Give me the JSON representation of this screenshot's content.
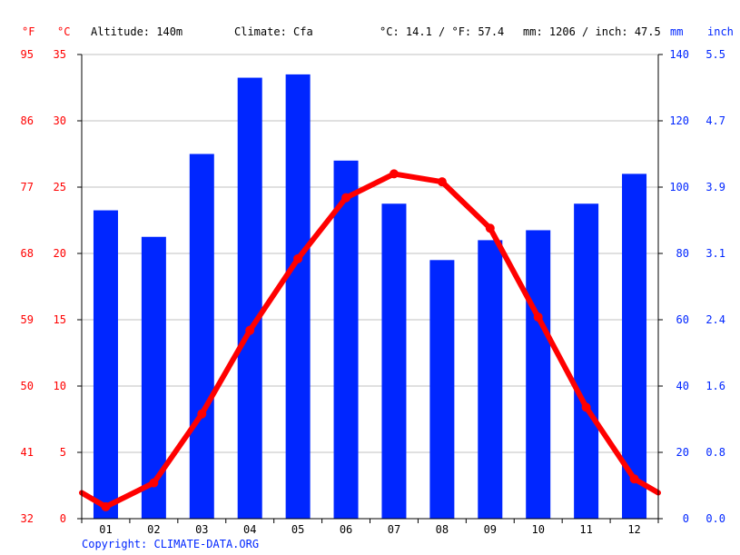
{
  "header": {
    "altitude": "Altitude: 140m",
    "climate": "Climate: Cfa",
    "temp_avg": "°C: 14.1 / °F: 57.4",
    "precip_total": "mm: 1206 / inch: 47.5"
  },
  "units": {
    "f": "°F",
    "c": "°C",
    "mm": "mm",
    "inch": "inch"
  },
  "copyright": "Copyright: CLIMATE-DATA.ORG",
  "colors": {
    "temp": "#ff0000",
    "precip": "#0026ff",
    "grid": "#c0c0c0",
    "axis": "#000000"
  },
  "chart_data": {
    "type": "bar",
    "categories": [
      "01",
      "02",
      "03",
      "04",
      "05",
      "06",
      "07",
      "08",
      "09",
      "10",
      "11",
      "12"
    ],
    "series": [
      {
        "type": "bar",
        "axis": "mm",
        "values": [
          93,
          85,
          110,
          133,
          134,
          108,
          95,
          78,
          84,
          87,
          95,
          104
        ]
      },
      {
        "type": "line",
        "axis": "°C",
        "values": [
          0.9,
          2.7,
          7.9,
          14.2,
          19.6,
          24.2,
          26.0,
          25.4,
          21.9,
          15.2,
          8.4,
          3.0
        ]
      }
    ],
    "temp_axis_c": {
      "ticks": [
        0,
        5,
        10,
        15,
        20,
        25,
        30,
        35
      ],
      "ylim": [
        0,
        35
      ]
    },
    "temp_axis_f": {
      "ticks": [
        "32",
        "41",
        "50",
        "59",
        "68",
        "77",
        "86",
        "95"
      ]
    },
    "precip_axis_mm": {
      "ticks": [
        0,
        20,
        40,
        60,
        80,
        100,
        120,
        140
      ],
      "ylim": [
        0,
        140
      ]
    },
    "precip_axis_inch": {
      "ticks": [
        "0.0",
        "0.8",
        "1.6",
        "2.4",
        "3.1",
        "3.9",
        "4.7",
        "5.5"
      ]
    },
    "grid": true
  }
}
